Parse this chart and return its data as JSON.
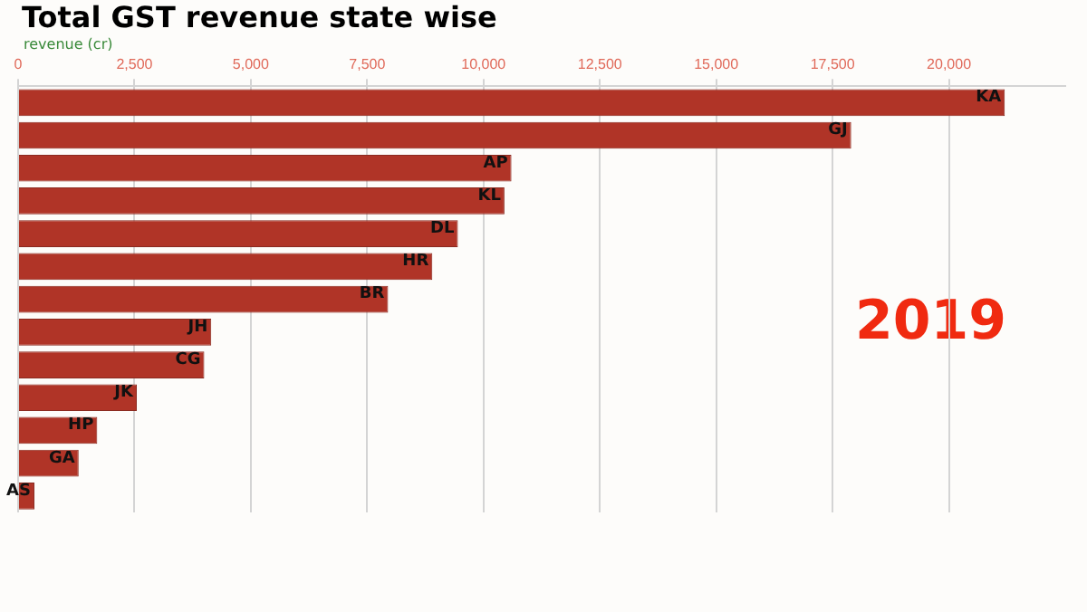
{
  "chart_data": {
    "type": "bar",
    "orientation": "horizontal",
    "title": "Total GST revenue state wise",
    "xlabel": "revenue (cr)",
    "categories": [
      "KA",
      "GJ",
      "AP",
      "KL",
      "DL",
      "HR",
      "BR",
      "JH",
      "CG",
      "JK",
      "HP",
      "GA",
      "AS"
    ],
    "values": [
      21200,
      17900,
      10600,
      10450,
      9450,
      8900,
      7950,
      4150,
      4000,
      2550,
      1700,
      1300,
      350
    ],
    "color": "#b03427",
    "xlim": [
      0,
      22500
    ],
    "xticks": [
      0,
      {
        "value": 2500,
        "label": "2,500"
      },
      {
        "value": 5000,
        "label": "5,000"
      },
      {
        "value": 7500,
        "label": "7,500"
      },
      {
        "value": 10000,
        "label": "10,000"
      },
      {
        "value": 12500,
        "label": "12,500"
      },
      {
        "value": 15000,
        "label": "15,000"
      },
      {
        "value": 17500,
        "label": "17,500"
      },
      {
        "value": 20000,
        "label": "20,000"
      }
    ],
    "grid": "x",
    "legend": false,
    "annotations": [
      "2019"
    ]
  }
}
